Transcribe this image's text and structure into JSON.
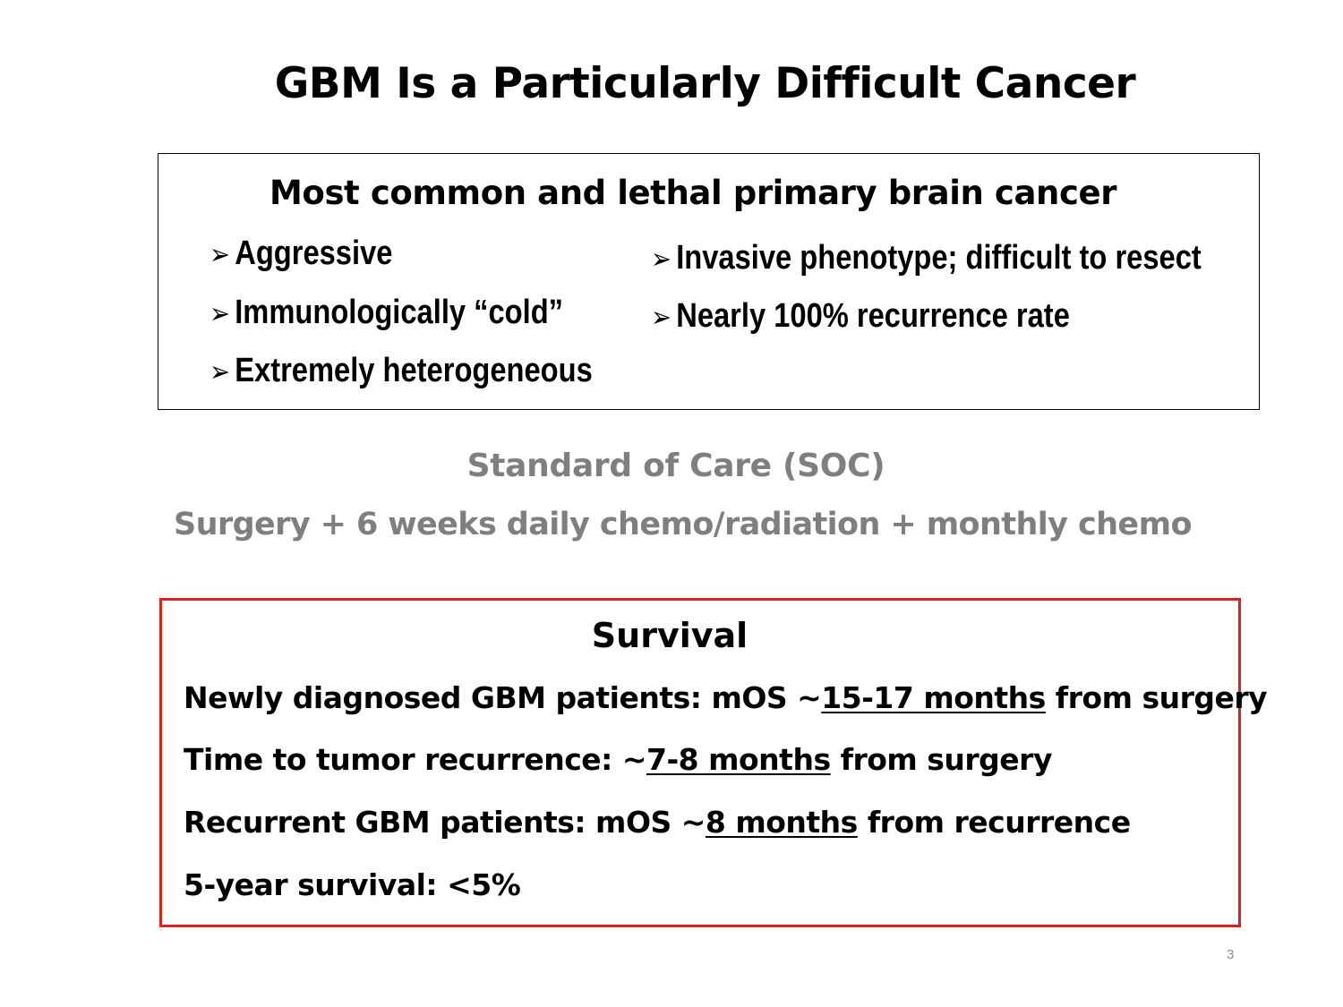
{
  "title": "GBM Is a Particularly Difficult Cancer",
  "characteristics": {
    "heading": "Most common and lethal primary brain cancer",
    "bullet_glyph": "➢",
    "left_bullets": [
      "Aggressive",
      "Immunologically “cold”",
      "Extremely heterogeneous"
    ],
    "right_bullets": [
      "Invasive phenotype;  difficult to resect",
      "Nearly 100% recurrence rate"
    ]
  },
  "standard_of_care": {
    "title": "Standard of Care (SOC)",
    "detail": "Surgery + 6 weeks daily chemo/radiation + monthly chemo"
  },
  "survival": {
    "heading": "Survival",
    "lines": [
      {
        "prefix": "Newly diagnosed GBM patients:  mOS ~",
        "emphasis": "15-17 months",
        "suffix": " from surgery"
      },
      {
        "prefix": "Time to tumor recurrence:   ~",
        "emphasis": "7-8 months",
        "suffix": " from surgery"
      },
      {
        "prefix": "Recurrent GBM patients:  mOS ~",
        "emphasis": "8 months",
        "suffix": " from recurrence"
      },
      {
        "prefix": "5-year survival:  <5%",
        "emphasis": "",
        "suffix": ""
      }
    ]
  },
  "colors": {
    "soc_text": "#7f7f7f",
    "survival_border": "#e0201e"
  },
  "page_number": "3"
}
